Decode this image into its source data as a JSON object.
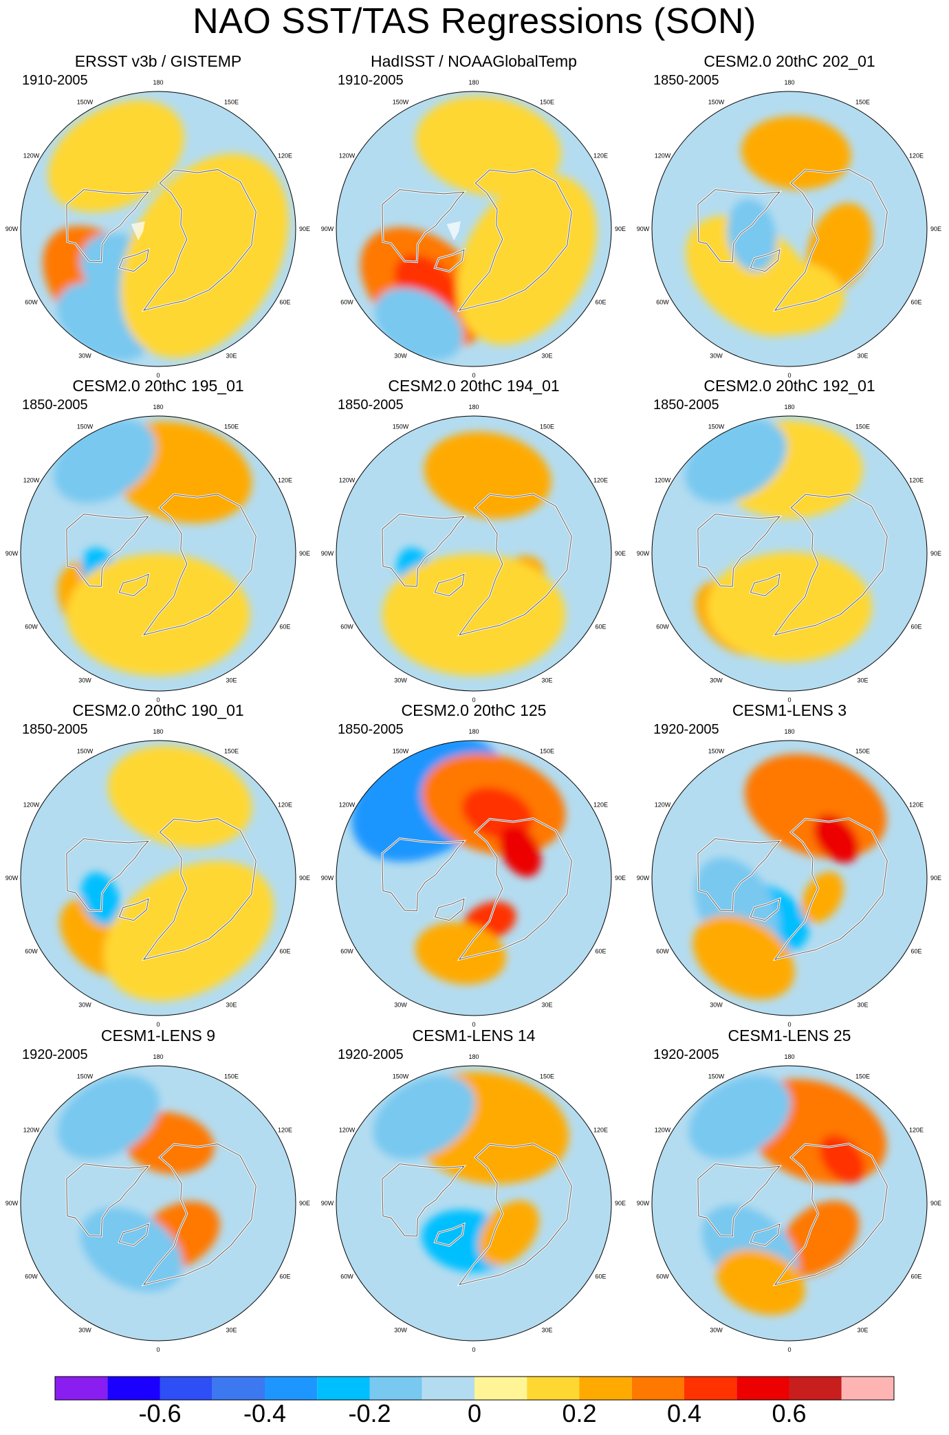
{
  "title": "NAO SST/TAS Regressions (SON)",
  "longitude_labels": [
    "180",
    "150E",
    "120E",
    "90E",
    "60E",
    "30E",
    "0",
    "30W",
    "60W",
    "90W",
    "120W",
    "150W"
  ],
  "panels": [
    {
      "title": "ERSST v3b / GISTEMP",
      "years": "1910-2005",
      "masked": true,
      "anomalies": [
        {
          "lon": -45,
          "colat": 52,
          "r": 38,
          "val": 0.3
        },
        {
          "lon": -20,
          "colat": 45,
          "r": 26,
          "val": 0.25
        },
        {
          "lon": -30,
          "colat": 35,
          "r": 30,
          "val": -0.15
        },
        {
          "lon": -30,
          "colat": 70,
          "r": 28,
          "val": -0.15
        },
        {
          "lon": 60,
          "colat": 35,
          "r": 60,
          "val": 0.1
        },
        {
          "lon": -150,
          "colat": 55,
          "r": 40,
          "val": 0.1
        }
      ]
    },
    {
      "title": "HadISST / NOAAGlobalTemp",
      "years": "1910-2005",
      "masked": true,
      "anomalies": [
        {
          "lon": -40,
          "colat": 50,
          "r": 40,
          "val": 0.3
        },
        {
          "lon": -40,
          "colat": 48,
          "r": 20,
          "val": 0.4
        },
        {
          "lon": -30,
          "colat": 72,
          "r": 26,
          "val": -0.15
        },
        {
          "lon": 60,
          "colat": 40,
          "r": 50,
          "val": 0.1
        },
        {
          "lon": 170,
          "colat": 55,
          "r": 40,
          "val": 0.1
        }
      ]
    },
    {
      "title": "CESM2.0 20thC 202_01",
      "years": "1850-2005",
      "masked": false,
      "anomalies": [
        {
          "lon": 175,
          "colat": 50,
          "r": 30,
          "val": 0.2
        },
        {
          "lon": 70,
          "colat": 35,
          "r": 25,
          "val": 0.2
        },
        {
          "lon": -40,
          "colat": 40,
          "r": 40,
          "val": 0.1
        },
        {
          "lon": 0,
          "colat": 45,
          "r": 30,
          "val": 0.1
        },
        {
          "lon": -80,
          "colat": 25,
          "r": 20,
          "val": -0.15
        }
      ]
    },
    {
      "title": "CESM2.0 20thC 195_01",
      "years": "1850-2005",
      "masked": false,
      "anomalies": [
        {
          "lon": 165,
          "colat": 55,
          "r": 40,
          "val": 0.2
        },
        {
          "lon": -45,
          "colat": 50,
          "r": 30,
          "val": 0.2
        },
        {
          "lon": -150,
          "colat": 70,
          "r": 30,
          "val": -0.15
        },
        {
          "lon": -70,
          "colat": 40,
          "r": 15,
          "val": -0.3
        },
        {
          "lon": 0,
          "colat": 40,
          "r": 50,
          "val": 0.1
        }
      ]
    },
    {
      "title": "CESM2.0 20thC 194_01",
      "years": "1850-2005",
      "masked": false,
      "anomalies": [
        {
          "lon": 170,
          "colat": 52,
          "r": 35,
          "val": 0.2
        },
        {
          "lon": 50,
          "colat": 35,
          "r": 20,
          "val": 0.2
        },
        {
          "lon": -20,
          "colat": 45,
          "r": 25,
          "val": 0.2
        },
        {
          "lon": -70,
          "colat": 40,
          "r": 15,
          "val": -0.3
        },
        {
          "lon": 0,
          "colat": 40,
          "r": 50,
          "val": 0.1
        }
      ]
    },
    {
      "title": "CESM2.0 20thC 192_01",
      "years": "1850-2005",
      "masked": false,
      "anomalies": [
        {
          "lon": 180,
          "colat": 55,
          "r": 40,
          "val": 0.1
        },
        {
          "lon": -40,
          "colat": 55,
          "r": 25,
          "val": 0.2
        },
        {
          "lon": -150,
          "colat": 70,
          "r": 30,
          "val": -0.15
        },
        {
          "lon": 0,
          "colat": 35,
          "r": 45,
          "val": 0.1
        }
      ]
    },
    {
      "title": "CESM2.0 20thC 190_01",
      "years": "1850-2005",
      "masked": false,
      "anomalies": [
        {
          "lon": 165,
          "colat": 55,
          "r": 40,
          "val": 0.1
        },
        {
          "lon": -45,
          "colat": 55,
          "r": 25,
          "val": 0.2
        },
        {
          "lon": -70,
          "colat": 40,
          "r": 15,
          "val": -0.3
        },
        {
          "lon": 30,
          "colat": 40,
          "r": 50,
          "val": 0.1
        }
      ]
    },
    {
      "title": "CESM2.0 20thC 125",
      "years": "1850-2005",
      "masked": false,
      "anomalies": [
        {
          "lon": -150,
          "colat": 60,
          "r": 45,
          "val": -0.35
        },
        {
          "lon": 165,
          "colat": 50,
          "r": 40,
          "val": 0.3
        },
        {
          "lon": 160,
          "colat": 45,
          "r": 20,
          "val": 0.4
        },
        {
          "lon": 120,
          "colat": 35,
          "r": 15,
          "val": 0.5
        },
        {
          "lon": 20,
          "colat": 30,
          "r": 15,
          "val": 0.4
        },
        {
          "lon": -10,
          "colat": 50,
          "r": 25,
          "val": 0.25
        }
      ]
    },
    {
      "title": "CESM1-LENS 3",
      "years": "1920-2005",
      "masked": false,
      "anomalies": [
        {
          "lon": 160,
          "colat": 50,
          "r": 40,
          "val": 0.3
        },
        {
          "lon": 130,
          "colat": 40,
          "r": 15,
          "val": 0.5
        },
        {
          "lon": -30,
          "colat": 30,
          "r": 25,
          "val": -0.3
        },
        {
          "lon": -60,
          "colat": 40,
          "r": 30,
          "val": -0.15
        },
        {
          "lon": 60,
          "colat": 25,
          "r": 15,
          "val": 0.2
        },
        {
          "lon": -30,
          "colat": 60,
          "r": 30,
          "val": 0.2
        }
      ]
    },
    {
      "title": "CESM1-LENS 9",
      "years": "1920-2005",
      "masked": false,
      "anomalies": [
        {
          "lon": 170,
          "colat": 40,
          "r": 25,
          "val": 0.3
        },
        {
          "lon": 30,
          "colat": 25,
          "r": 25,
          "val": 0.3
        },
        {
          "lon": -30,
          "colat": 35,
          "r": 30,
          "val": -0.2
        },
        {
          "lon": -150,
          "colat": 65,
          "r": 30,
          "val": -0.15
        }
      ]
    },
    {
      "title": "CESM1-LENS 14",
      "years": "1920-2005",
      "masked": false,
      "anomalies": [
        {
          "lon": 170,
          "colat": 50,
          "r": 45,
          "val": 0.25
        },
        {
          "lon": -10,
          "colat": 25,
          "r": 25,
          "val": -0.3
        },
        {
          "lon": 50,
          "colat": 30,
          "r": 20,
          "val": 0.2
        },
        {
          "lon": -150,
          "colat": 65,
          "r": 30,
          "val": -0.15
        }
      ]
    },
    {
      "title": "CESM1-LENS 25",
      "years": "1920-2005",
      "masked": false,
      "anomalies": [
        {
          "lon": 160,
          "colat": 50,
          "r": 40,
          "val": 0.3
        },
        {
          "lon": 130,
          "colat": 45,
          "r": 15,
          "val": 0.4
        },
        {
          "lon": 40,
          "colat": 30,
          "r": 25,
          "val": 0.3
        },
        {
          "lon": -40,
          "colat": 40,
          "r": 30,
          "val": -0.2
        },
        {
          "lon": -20,
          "colat": 55,
          "r": 25,
          "val": 0.2
        },
        {
          "lon": -150,
          "colat": 65,
          "r": 30,
          "val": -0.15
        }
      ]
    }
  ],
  "colorbar": {
    "min": -0.8,
    "max": 0.8,
    "step": 0.1,
    "colors": [
      "#8a1ef0",
      "#1b00ff",
      "#2d4ff5",
      "#3c78f0",
      "#1e96ff",
      "#00bfff",
      "#78c8f0",
      "#b4dcf0",
      "#fff596",
      "#ffd732",
      "#ffaa00",
      "#ff7800",
      "#ff3200",
      "#ec0000",
      "#c81e1e",
      "#ffb4b4"
    ],
    "labels": [
      "-0.6",
      "-0.4",
      "-0.2",
      "0",
      "0.2",
      "0.4",
      "0.6"
    ]
  }
}
